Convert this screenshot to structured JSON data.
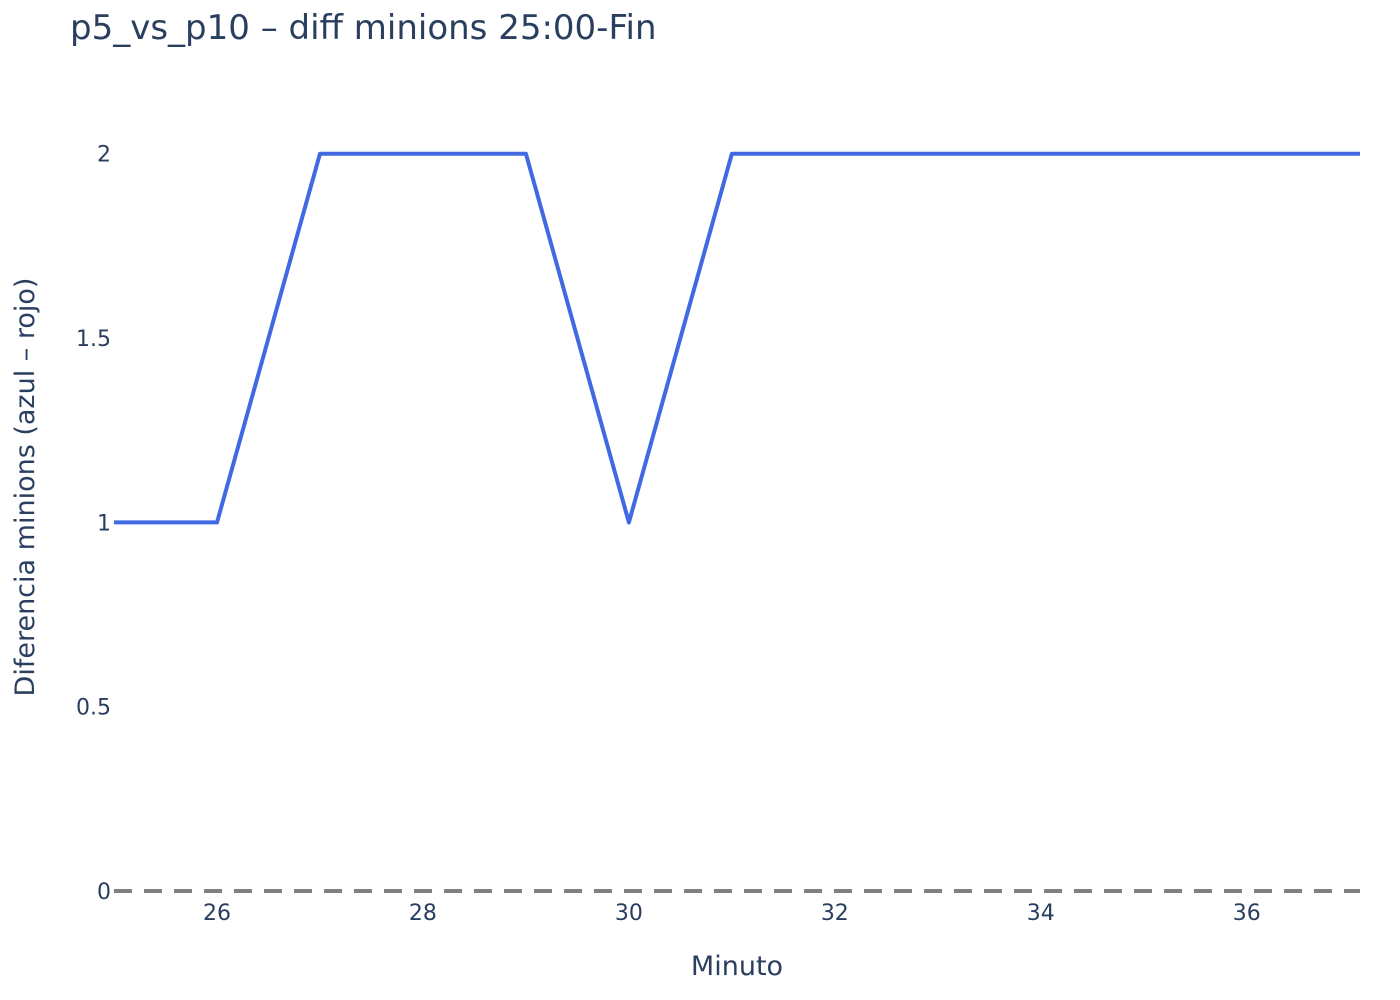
{
  "chart_data": {
    "type": "line",
    "title": "p5_vs_p10 – diff minions 25:00-Fin",
    "xlabel": "Minuto",
    "ylabel": "Diferencia minions (azul – rojo)",
    "xlim": [
      25,
      37.1
    ],
    "ylim": [
      0,
      2.2
    ],
    "x_ticks": [
      26,
      28,
      30,
      32,
      34,
      36
    ],
    "y_ticks": [
      0,
      0.5,
      1,
      1.5,
      2
    ],
    "y_tick_labels": [
      "0",
      "0.5",
      "1",
      "1.5",
      "2"
    ],
    "grid": false,
    "series": [
      {
        "color": "#4169e1",
        "x": [
          25,
          26,
          27,
          28,
          29,
          30,
          31,
          32,
          33,
          34,
          35,
          36,
          37.1
        ],
        "y": [
          1,
          1,
          2,
          2,
          2,
          1,
          2,
          2,
          2,
          2,
          2,
          2,
          2
        ]
      }
    ],
    "reference_lines": [
      {
        "y": 0,
        "style": "dashed",
        "color": "#808080"
      }
    ]
  }
}
